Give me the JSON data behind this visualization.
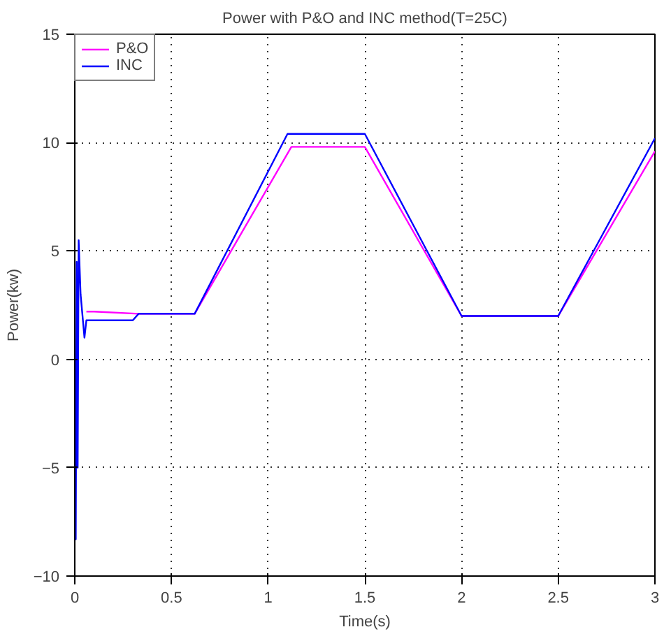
{
  "chart_data": {
    "type": "line",
    "title": "Power with P&O and INC method(T=25C)",
    "xlabel": "Time(s)",
    "ylabel": "Power(kw)",
    "xlim": [
      0,
      3
    ],
    "ylim": [
      -10,
      15
    ],
    "xticks": [
      0,
      0.5,
      1,
      1.5,
      2,
      2.5,
      3
    ],
    "yticks": [
      -10,
      -5,
      0,
      5,
      10,
      15
    ],
    "grid": true,
    "legend": "top left",
    "line_style": "solid",
    "marker": "none",
    "series": [
      {
        "name": "P&O",
        "color": "#ff00ff",
        "x": [
          0.06,
          0.1,
          0.33,
          0.62,
          1.12,
          1.5,
          2.0,
          2.5,
          3.0
        ],
        "values": [
          2.2,
          2.2,
          2.1,
          2.1,
          9.8,
          9.8,
          2.0,
          2.0,
          9.6
        ]
      },
      {
        "name": "INC",
        "color": "#0000ff",
        "x": [
          0,
          0.005,
          0.01,
          0.015,
          0.02,
          0.03,
          0.04,
          0.05,
          0.06,
          0.1,
          0.3,
          0.33,
          0.62,
          1.1,
          1.5,
          2.0,
          2.5,
          3.0
        ],
        "values": [
          0,
          -8.3,
          4.5,
          -5,
          5.5,
          3,
          2,
          1,
          1.8,
          1.8,
          1.8,
          2.1,
          2.1,
          10.4,
          10.4,
          2.0,
          2.0,
          10.2
        ]
      }
    ]
  }
}
